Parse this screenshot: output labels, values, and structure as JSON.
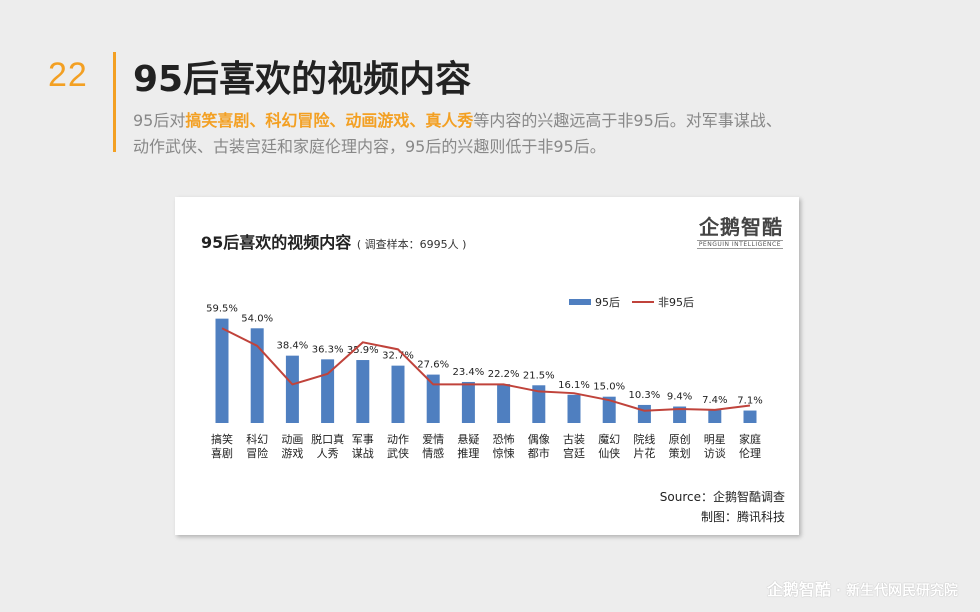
{
  "slide": {
    "page_number": "22",
    "title": "95后喜欢的视频内容",
    "desc_prefix": "95后对",
    "desc_highlight": "搞笑喜剧、科幻冒险、动画游戏、真人秀",
    "desc_suffix_1": "等内容的兴趣远高于非95后。对军事谋战、",
    "desc_line2": "动作武侠、古装宫廷和家庭伦理内容，95后的兴趣则低于非95后。"
  },
  "logo": {
    "text": "企鹅智酷",
    "sub": "PENGUIN INTELLIGENCE"
  },
  "source": {
    "line1": "Source：企鹅智酷调查",
    "line2": "制图：腾讯科技"
  },
  "footer": {
    "logo": "企鹅智酷",
    "text": "· 新生代网民研究院"
  },
  "chart_data": {
    "type": "bar",
    "title": "95后喜欢的视频内容",
    "subtitle": "( 调查样本：6995人 )",
    "categories": [
      [
        "搞笑",
        "喜剧"
      ],
      [
        "科幻",
        "冒险"
      ],
      [
        "动画",
        "游戏"
      ],
      [
        "脱口真",
        "人秀"
      ],
      [
        "军事",
        "谋战"
      ],
      [
        "动作",
        "武侠"
      ],
      [
        "爱情",
        "情感"
      ],
      [
        "悬疑",
        "推理"
      ],
      [
        "恐怖",
        "惊悚"
      ],
      [
        "偶像",
        "都市"
      ],
      [
        "古装",
        "宫廷"
      ],
      [
        "魔幻",
        "仙侠"
      ],
      [
        "院线",
        "片花"
      ],
      [
        "原创",
        "策划"
      ],
      [
        "明星",
        "访谈"
      ],
      [
        "家庭",
        "伦理"
      ]
    ],
    "series": [
      {
        "name": "95后",
        "type": "bar",
        "color": "#4f7fc0",
        "values": [
          59.5,
          54.0,
          38.4,
          36.3,
          35.9,
          32.7,
          27.6,
          23.4,
          22.2,
          21.5,
          16.1,
          15.0,
          10.3,
          9.4,
          7.4,
          7.1
        ],
        "labels": [
          "59.5%",
          "54.0%",
          "38.4%",
          "36.3%",
          "35.9%",
          "32.7%",
          "27.6%",
          "23.4%",
          "22.2%",
          "21.5%",
          "16.1%",
          "15.0%",
          "10.3%",
          "9.4%",
          "7.4%",
          "7.1%"
        ]
      },
      {
        "name": "非95后",
        "type": "line",
        "color": "#c0433b",
        "values": [
          54.0,
          44.0,
          22.0,
          28.0,
          46.0,
          42.0,
          22.0,
          22.0,
          22.0,
          18.0,
          17.0,
          13.0,
          7.0,
          8.0,
          7.5,
          10.0
        ]
      }
    ],
    "ylim": [
      0,
      65
    ],
    "legend": "top-right"
  }
}
